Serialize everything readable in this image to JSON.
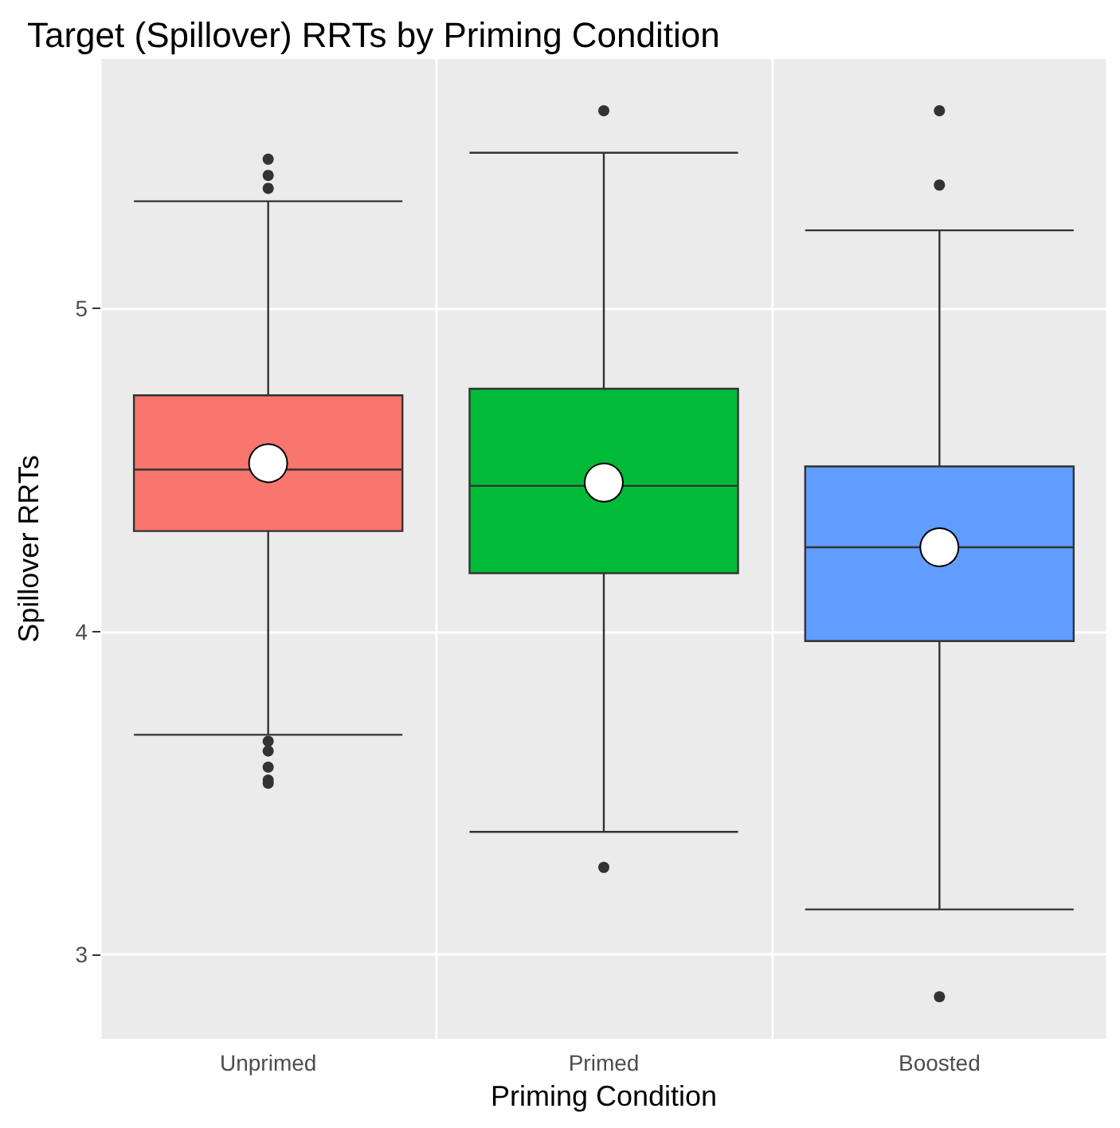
{
  "chart_data": {
    "type": "box",
    "title": "Target (Spillover) RRTs by Priming Condition",
    "xlabel": "Priming Condition",
    "ylabel": "Spillover RRTs",
    "categories": [
      "Unprimed",
      "Primed",
      "Boosted"
    ],
    "series": [
      {
        "type": "box",
        "colors": [
          "#f8766d",
          "#00ba38",
          "#619cff"
        ],
        "boxes": [
          {
            "low": 3.68,
            "q1": 4.31,
            "median": 4.5,
            "q3": 4.73,
            "high": 5.33,
            "outliers": [
              5.46,
              5.41,
              5.37,
              3.66,
              3.63,
              3.58,
              3.54,
              3.53
            ]
          },
          {
            "low": 3.38,
            "q1": 4.18,
            "median": 4.45,
            "q3": 4.75,
            "high": 5.48,
            "outliers": [
              5.61,
              3.27
            ]
          },
          {
            "low": 3.14,
            "q1": 3.97,
            "median": 4.26,
            "q3": 4.51,
            "high": 5.24,
            "outliers": [
              5.61,
              5.38,
              2.87
            ]
          }
        ]
      },
      {
        "type": "scatter",
        "color": "#ffffff",
        "marker": "circle",
        "x": [
          "Unprimed",
          "Primed",
          "Boosted"
        ],
        "values": [
          4.52,
          4.46,
          4.26
        ]
      }
    ],
    "ylim": [
      2.74,
      5.77
    ],
    "yticks": [
      3,
      4,
      5
    ],
    "grid": true
  }
}
